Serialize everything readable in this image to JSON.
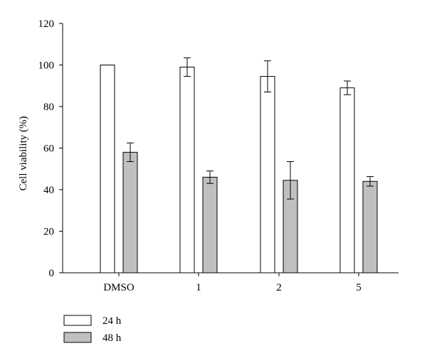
{
  "chart_data": {
    "type": "bar",
    "categories": [
      "DMSO",
      "1",
      "2",
      "5"
    ],
    "ylabel": "Cell viability (%)",
    "xlabel": "",
    "ylim": [
      0,
      120
    ],
    "yticks": [
      0,
      20,
      40,
      60,
      80,
      100,
      120
    ],
    "grid": false,
    "legend_placement": "bottom-left",
    "series": [
      {
        "name": "24 h",
        "color": "#ffffff",
        "values": [
          100,
          99,
          94.5,
          89
        ],
        "errors": [
          null,
          4.5,
          7.5,
          3.3
        ]
      },
      {
        "name": "48 h",
        "color": "#c0c0c0",
        "values": [
          58,
          46,
          44.5,
          44
        ],
        "errors": [
          4.5,
          3,
          9,
          2.3
        ]
      }
    ]
  }
}
